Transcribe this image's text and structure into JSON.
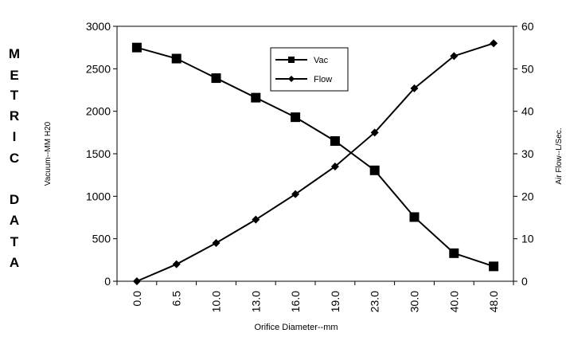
{
  "side_label": [
    "M",
    "E",
    "T",
    "R",
    "I",
    "C",
    "",
    "D",
    "A",
    "T",
    "A"
  ],
  "chart_data": {
    "type": "line",
    "title": "",
    "xlabel": "Orifice Diameter--mm",
    "ylabel": "Vacuum--MM H20",
    "y2label": "Air Flow--L/Sec.",
    "categories": [
      "0.0",
      "6.5",
      "10.0",
      "13.0",
      "16.0",
      "19.0",
      "23.0",
      "30.0",
      "40.0",
      "48.0"
    ],
    "ylim": [
      0,
      3000
    ],
    "yticks": [
      0,
      500,
      1000,
      1500,
      2000,
      2500,
      3000
    ],
    "y2lim": [
      0,
      60
    ],
    "y2ticks": [
      0,
      10,
      20,
      30,
      40,
      50,
      60
    ],
    "grid": false,
    "legend": "top-center",
    "series": [
      {
        "name": "Vac",
        "axis": "left",
        "marker": "square",
        "values": [
          2750,
          2620,
          2390,
          2160,
          1930,
          1650,
          1305,
          755,
          330,
          175
        ]
      },
      {
        "name": "Flow",
        "axis": "right",
        "marker": "diamond",
        "values": [
          0,
          4,
          9,
          14.5,
          20.5,
          27,
          35,
          45.4,
          53,
          56
        ]
      }
    ]
  }
}
